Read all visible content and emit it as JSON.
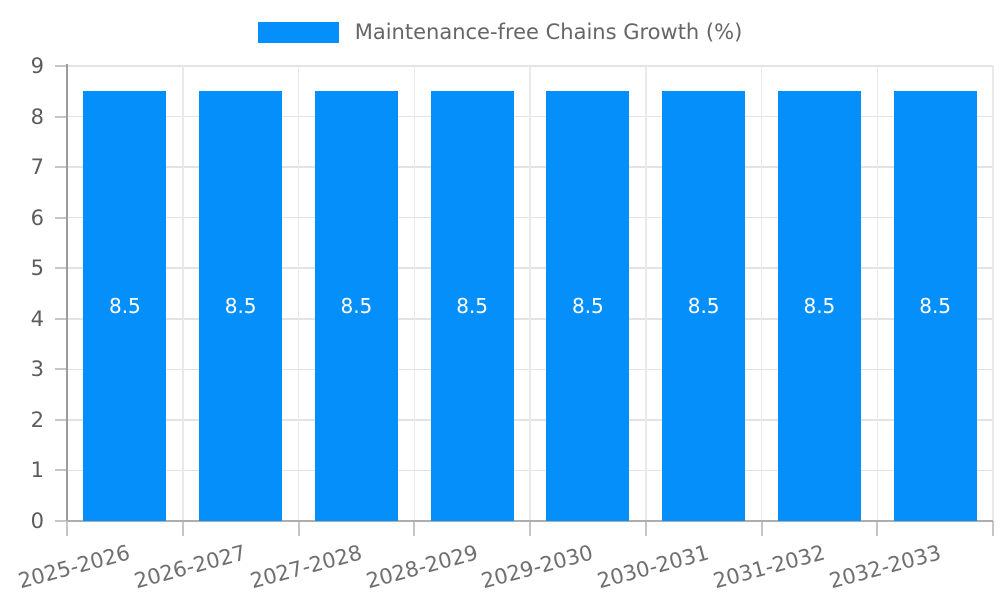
{
  "chart_data": {
    "type": "bar",
    "title": "Maintenance-free Chains Growth (%)",
    "legend": {
      "position": "top-center",
      "items": [
        {
          "label": "Maintenance-free Chains Growth (%)",
          "swatch_color": "#058FFA"
        }
      ]
    },
    "categories": [
      "2025-2026",
      "2026-2027",
      "2027-2028",
      "2028-2029",
      "2029-2030",
      "2030-2031",
      "2031-2032",
      "2032-2033"
    ],
    "values": [
      8.5,
      8.5,
      8.5,
      8.5,
      8.5,
      8.5,
      8.5,
      8.5
    ],
    "bar_value_labels": [
      "8.5",
      "8.5",
      "8.5",
      "8.5",
      "8.5",
      "8.5",
      "8.5",
      "8.5"
    ],
    "xlabel": "",
    "ylabel": "",
    "ylim": [
      0,
      9
    ],
    "yticks": [
      0,
      1,
      2,
      3,
      4,
      5,
      6,
      7,
      8,
      9
    ],
    "grid": "both",
    "x_tick_rotation_deg": -15,
    "colors": {
      "bar": "#058FFA",
      "bar_label": "#FFFFFF",
      "h_gridline": "#e3e3e3",
      "v_gridline": "#e9e9e9",
      "y_axis_line": "#9c9c9c",
      "x_baseline": "#aeaeae",
      "tick_mark": "#c6c6c6",
      "y_tick_label": "#5c5c5e",
      "x_tick_label": "#6f6f6f",
      "legend_text": "#666666",
      "background": "#ffffff"
    }
  }
}
